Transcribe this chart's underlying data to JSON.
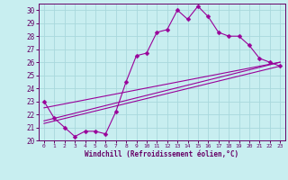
{
  "xlabel": "Windchill (Refroidissement éolien,°C)",
  "bg_color": "#c8eef0",
  "grid_color": "#a8d8dc",
  "line_color": "#990099",
  "xlim": [
    -0.5,
    23.5
  ],
  "ylim": [
    20,
    30.5
  ],
  "xticks": [
    0,
    1,
    2,
    3,
    4,
    5,
    6,
    7,
    8,
    9,
    10,
    11,
    12,
    13,
    14,
    15,
    16,
    17,
    18,
    19,
    20,
    21,
    22,
    23
  ],
  "yticks": [
    20,
    21,
    22,
    23,
    24,
    25,
    26,
    27,
    28,
    29,
    30
  ],
  "line1_x": [
    0,
    1,
    2,
    3,
    4,
    5,
    6,
    7,
    8,
    9,
    10,
    11,
    12,
    13,
    14,
    15,
    16,
    17,
    18,
    19,
    20,
    21,
    22,
    23
  ],
  "line1_y": [
    23.0,
    21.7,
    21.0,
    20.3,
    20.7,
    20.7,
    20.5,
    22.2,
    24.5,
    26.5,
    26.7,
    28.3,
    28.5,
    30.0,
    29.3,
    30.3,
    29.5,
    28.3,
    28.0,
    28.0,
    27.3,
    26.3,
    26.0,
    25.7
  ],
  "line2_x": [
    0,
    23
  ],
  "line2_y": [
    22.5,
    26.0
  ],
  "line3_x": [
    0,
    23
  ],
  "line3_y": [
    21.5,
    26.0
  ],
  "line4_x": [
    0,
    23
  ],
  "line4_y": [
    21.3,
    25.7
  ]
}
